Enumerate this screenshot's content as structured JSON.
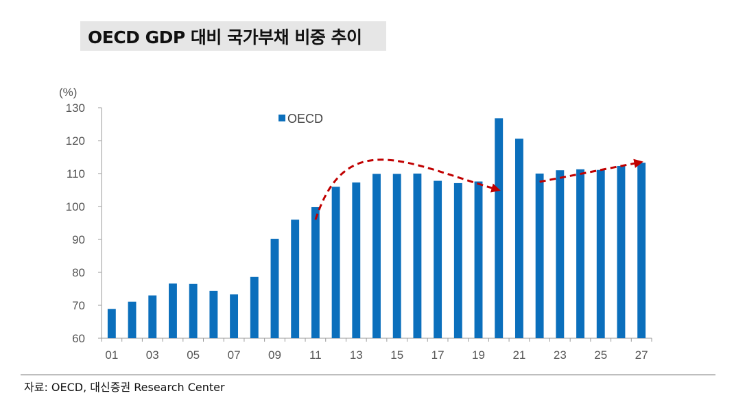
{
  "title": "OECD GDP 대비 국가부채 비중 추이",
  "source": "자료: OECD, 대신증권 Research Center",
  "chart_data": {
    "type": "bar",
    "unit_label": "(%)",
    "categories": [
      "01",
      "02",
      "03",
      "04",
      "05",
      "06",
      "07",
      "08",
      "09",
      "10",
      "11",
      "12",
      "13",
      "14",
      "15",
      "16",
      "17",
      "18",
      "19",
      "20",
      "21",
      "22",
      "23",
      "24",
      "25",
      "26",
      "27"
    ],
    "x_tick_labels": [
      "01",
      "03",
      "05",
      "07",
      "09",
      "11",
      "13",
      "15",
      "17",
      "19",
      "21",
      "23",
      "25",
      "27"
    ],
    "series": [
      {
        "name": "OECD",
        "color": "#0b6fbc",
        "values": [
          68.9,
          71.1,
          73.0,
          76.6,
          76.5,
          74.4,
          73.3,
          78.6,
          90.2,
          96.0,
          99.8,
          106.0,
          107.3,
          109.9,
          109.9,
          110.0,
          107.8,
          107.1,
          107.6,
          126.8,
          120.6,
          110.0,
          111.0,
          111.3,
          111.1,
          112.3,
          113.3
        ]
      }
    ],
    "ylim": [
      60,
      130
    ],
    "yticks": [
      60,
      70,
      80,
      90,
      100,
      110,
      120,
      130
    ],
    "legend_position": "top-center",
    "grid": false,
    "annotations": [
      {
        "type": "trend-arrow",
        "color": "#c00000",
        "style": "dashed",
        "description": "curve rising then falling",
        "from": [
          "11",
          96
        ],
        "peak": [
          "15",
          112
        ],
        "to": [
          "20",
          105
        ]
      },
      {
        "type": "trend-arrow",
        "color": "#c00000",
        "style": "dashed",
        "description": "gradual rise",
        "from": [
          "22",
          107.5
        ],
        "to": [
          "27",
          113.5
        ]
      }
    ]
  }
}
